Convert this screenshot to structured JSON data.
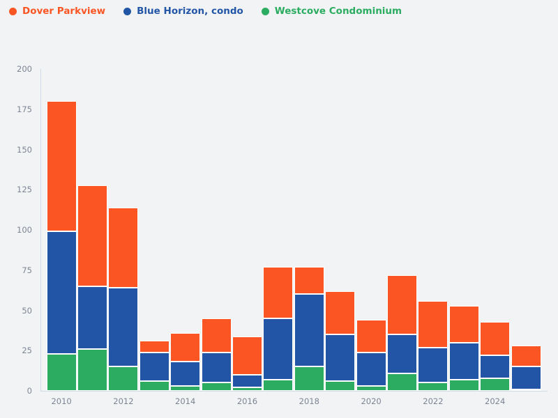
{
  "legend": {
    "items": [
      {
        "label": "Dover Parkview",
        "color": "#fb5524"
      },
      {
        "label": "Blue Horizon, condo",
        "color": "#2355a6"
      },
      {
        "label": "Westcove Condominium",
        "color": "#2bac60"
      }
    ]
  },
  "chart_data": {
    "type": "bar",
    "stacked": true,
    "title": "",
    "xlabel": "",
    "ylabel": "",
    "categories": [
      2010,
      2011,
      2012,
      2013,
      2014,
      2015,
      2016,
      2017,
      2018,
      2019,
      2020,
      2021,
      2022,
      2023,
      2024,
      2025
    ],
    "series": [
      {
        "name": "Westcove Condominium",
        "color": "#2bac60",
        "stack_position": "bottom",
        "values": [
          23,
          26,
          15,
          6,
          3,
          5,
          2,
          7,
          15,
          6,
          3,
          11,
          5,
          7,
          8,
          1
        ]
      },
      {
        "name": "Blue Horizon, condo",
        "color": "#2355a6",
        "stack_position": "middle",
        "values": [
          76,
          39,
          49,
          18,
          15,
          19,
          8,
          38,
          45,
          29,
          21,
          24,
          22,
          23,
          14,
          14
        ]
      },
      {
        "name": "Dover Parkview",
        "color": "#fb5524",
        "stack_position": "top",
        "values": [
          81,
          63,
          50,
          7,
          18,
          21,
          24,
          32,
          17,
          27,
          20,
          37,
          29,
          23,
          21,
          13
        ]
      }
    ],
    "stack_totals": [
      180,
      128,
      114,
      31,
      36,
      45,
      34,
      77,
      77,
      62,
      44,
      72,
      56,
      53,
      43,
      28
    ],
    "ylim": [
      0,
      200
    ],
    "yticks": [
      0,
      25,
      50,
      75,
      100,
      125,
      150,
      175,
      200
    ],
    "xticks": [
      2010,
      2012,
      2014,
      2016,
      2018,
      2020,
      2022,
      2024
    ],
    "grid": false,
    "legend_position": "top-left"
  },
  "colors": {
    "background": "#f2f3f5",
    "axis_line": "#cfd9e8",
    "tick_label": "#7d8593",
    "bar_border": "#ffffff"
  }
}
